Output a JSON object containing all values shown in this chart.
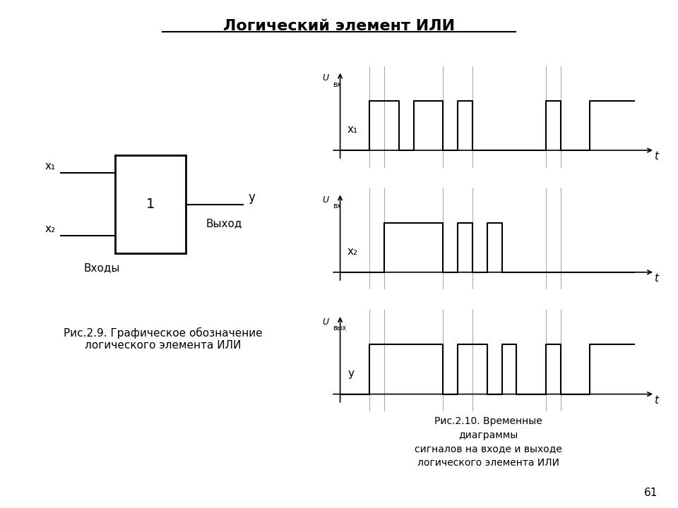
{
  "title": "Логический элемент ИЛИ",
  "fig_caption_left": "Рис.2.9. Графическое обозначение\nлогического элемента ИЛИ",
  "fig_caption_right": "Рис.2.10. Временные\nдиаграммы\nсигналов на входе и выходе\nлогического элемента ИЛИ",
  "page_number": "61",
  "background_color": "#ffffff",
  "line_color": "#000000",
  "grid_line_color": "#aaaaaa",
  "x1_t": [
    0,
    1,
    1,
    2,
    2,
    2.5,
    2.5,
    3.5,
    3.5,
    4,
    4,
    4.5,
    4.5,
    7,
    7,
    7.5,
    7.5,
    8.5,
    8.5,
    10
  ],
  "x1_v": [
    0,
    0,
    1,
    1,
    0,
    0,
    1,
    1,
    0,
    0,
    1,
    1,
    0,
    0,
    1,
    1,
    0,
    0,
    1,
    1
  ],
  "x2_t": [
    0,
    1.5,
    1.5,
    3.5,
    3.5,
    4,
    4,
    4.5,
    4.5,
    5,
    5,
    5.5,
    5.5,
    6,
    6,
    10
  ],
  "x2_v": [
    0,
    0,
    1,
    1,
    0,
    0,
    1,
    1,
    0,
    0,
    1,
    1,
    0,
    0,
    0,
    0
  ],
  "y_t": [
    0,
    1,
    1,
    3.5,
    3.5,
    4,
    4,
    5,
    5,
    5.5,
    5.5,
    6,
    6,
    7,
    7,
    7.5,
    7.5,
    8.5,
    8.5,
    10
  ],
  "y_v": [
    0,
    0,
    1,
    1,
    0,
    0,
    1,
    1,
    0,
    0,
    1,
    1,
    0,
    0,
    1,
    1,
    0,
    0,
    1,
    1
  ],
  "t_max": 10,
  "vline_positions": [
    1.0,
    1.5,
    3.5,
    4.5,
    7.0,
    7.5
  ]
}
